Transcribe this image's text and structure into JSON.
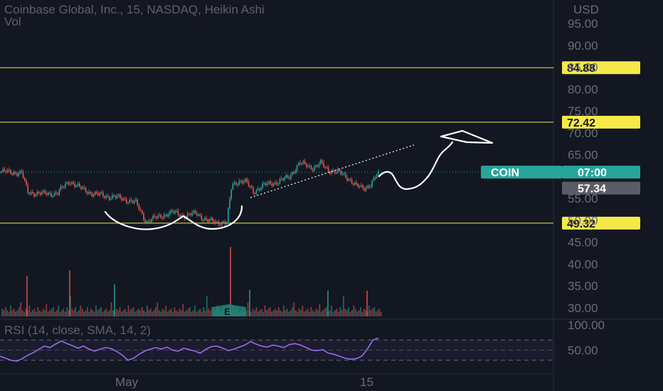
{
  "header": {
    "title": "Coinbase Global, Inc., 15, NASDAQ, Heikin Ashi",
    "volume_label": "Vol"
  },
  "rsi": {
    "label": "RSI (14, close, SMA, 14, 2)"
  },
  "colors": {
    "background": "#131722",
    "up": "#26a69a",
    "down": "#ef5350",
    "level_line": "#f5e94a",
    "rsi_line": "#9c6ce6",
    "drawing": "#ffffff"
  },
  "chart_data": [
    {
      "type": "line",
      "subtype": "heikin_ashi_candles",
      "currency": "USD",
      "currency_label": "USD",
      "ylim": [
        26,
        98
      ],
      "yticks": [
        "95.00",
        "90.00",
        "85.00",
        "80.00",
        "75.00",
        "70.00",
        "65.00",
        "55.00",
        "50.00",
        "45.00",
        "40.00",
        "35.00",
        "30.00"
      ],
      "xtick_labels": [
        "May",
        "15"
      ],
      "price_levels": [
        {
          "label": "84.88",
          "value": 84.88
        },
        {
          "label": "72.42",
          "value": 72.42
        },
        {
          "label": "49.32",
          "value": 49.32
        }
      ],
      "symbol_tag": {
        "name": "COIN",
        "value_label": "07:00",
        "value": 61.0
      },
      "last_price_tag": {
        "label": "57.34",
        "value": 57.34
      },
      "price_path": [
        [
          0,
          61.1
        ],
        [
          30,
          60.8
        ],
        [
          38,
          56.4
        ],
        [
          60,
          56.0
        ],
        [
          80,
          56.2
        ],
        [
          97,
          59.0
        ],
        [
          110,
          57.5
        ],
        [
          130,
          56.0
        ],
        [
          150,
          55.5
        ],
        [
          170,
          55.0
        ],
        [
          190,
          54.0
        ],
        [
          205,
          49.6
        ],
        [
          215,
          50.3
        ],
        [
          225,
          51.0
        ],
        [
          245,
          51.8
        ],
        [
          260,
          50.8
        ],
        [
          275,
          51.7
        ],
        [
          290,
          49.8
        ],
        [
          305,
          49.6
        ],
        [
          318,
          49.4
        ],
        [
          325,
          58.0
        ],
        [
          335,
          59.0
        ],
        [
          345,
          58.7
        ],
        [
          355,
          56.5
        ],
        [
          360,
          57.0
        ],
        [
          370,
          58.0
        ],
        [
          390,
          58.8
        ],
        [
          405,
          59.8
        ],
        [
          420,
          63.0
        ],
        [
          430,
          62.5
        ],
        [
          440,
          62.0
        ],
        [
          450,
          63.0
        ],
        [
          460,
          61.5
        ],
        [
          470,
          61.2
        ],
        [
          480,
          60.5
        ],
        [
          490,
          59.5
        ],
        [
          500,
          57.8
        ],
        [
          510,
          57.2
        ],
        [
          520,
          58.2
        ],
        [
          530,
          60.5
        ]
      ],
      "volume_pattern": [
        4,
        3,
        5,
        3,
        2,
        6,
        3,
        4,
        2,
        3,
        5,
        8,
        3,
        2,
        4,
        3,
        6,
        2,
        3,
        4,
        2,
        5,
        3,
        2,
        4,
        3,
        7,
        2,
        3,
        4,
        5,
        2,
        3,
        6,
        2,
        3,
        4,
        2,
        5,
        3,
        12,
        4,
        3,
        5,
        2,
        3,
        6,
        4,
        2,
        3,
        5,
        2,
        4,
        3,
        2,
        6,
        3,
        4,
        5,
        2,
        3,
        4,
        2,
        3,
        8,
        3,
        2,
        4,
        3,
        5,
        2,
        3,
        4,
        2,
        6,
        3,
        4,
        5,
        2,
        3
      ],
      "volume_spikes": [
        [
          37,
          38
        ],
        [
          97,
          43
        ],
        [
          160,
          30
        ],
        [
          323,
          65
        ],
        [
          350,
          25
        ],
        [
          460,
          24
        ],
        [
          515,
          24
        ]
      ]
    },
    {
      "type": "line",
      "name": "RSI",
      "ylim": [
        0,
        100
      ],
      "yticks": [
        "100.00",
        "50.00"
      ],
      "band": [
        30,
        70
      ],
      "values": [
        38,
        34,
        30,
        28,
        33,
        40,
        45,
        52,
        58,
        55,
        62,
        68,
        63,
        59,
        54,
        58,
        52,
        48,
        52,
        55,
        53,
        47,
        40,
        30,
        34,
        42,
        48,
        52,
        55,
        52,
        56,
        50,
        48,
        54,
        51,
        48,
        44,
        52,
        57,
        58,
        54,
        49,
        52,
        56,
        60,
        67,
        62,
        58,
        56,
        60,
        58,
        55,
        61,
        63,
        60,
        55,
        50,
        49,
        51,
        44,
        42,
        38,
        34,
        32,
        33,
        38,
        52,
        70,
        74
      ]
    }
  ]
}
